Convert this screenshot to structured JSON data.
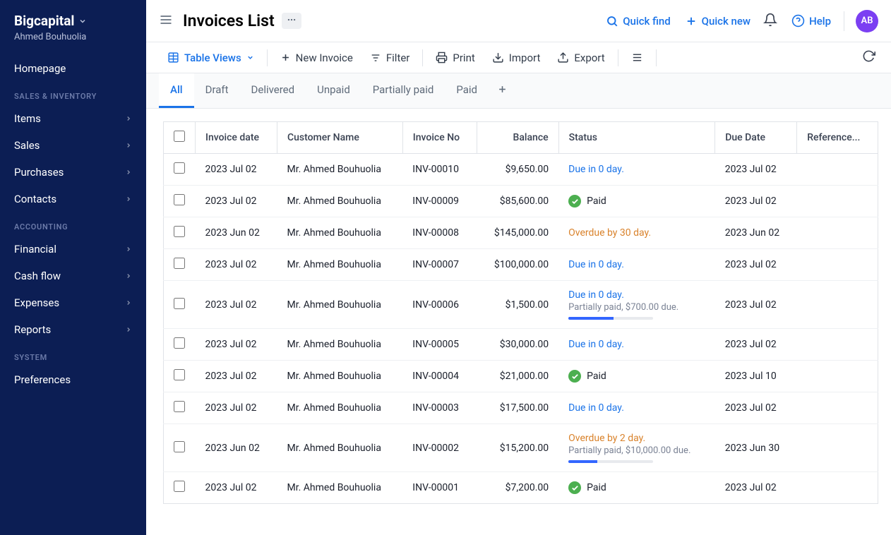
{
  "brand": "Bigcapital",
  "user": "Ahmed Bouhuolia",
  "sidebar": {
    "home": "Homepage",
    "sections": [
      {
        "title": "SALES & INVENTORY",
        "items": [
          "Items",
          "Sales",
          "Purchases",
          "Contacts"
        ]
      },
      {
        "title": "ACCOUNTING",
        "items": [
          "Financial",
          "Cash flow",
          "Expenses",
          "Reports"
        ]
      },
      {
        "title": "SYSTEM",
        "items": [
          "Preferences"
        ],
        "noChevron": true
      }
    ]
  },
  "page_title": "Invoices List",
  "top": {
    "quick_find": "Quick find",
    "quick_new": "Quick new",
    "help": "Help",
    "avatar": "AB"
  },
  "toolbar": {
    "table_views": "Table Views",
    "new_invoice": "New Invoice",
    "filter": "Filter",
    "print": "Print",
    "import": "Import",
    "export": "Export"
  },
  "tabs": [
    "All",
    "Draft",
    "Delivered",
    "Unpaid",
    "Partially paid",
    "Paid"
  ],
  "active_tab": 0,
  "columns": [
    "Invoice date",
    "Customer Name",
    "Invoice No",
    "Balance",
    "Status",
    "Due Date",
    "Reference..."
  ],
  "rows": [
    {
      "date": "2023 Jul 02",
      "customer": "Mr. Ahmed Bouhuolia",
      "no": "INV-00010",
      "balance": "$9,650.00",
      "status": {
        "type": "due",
        "text": "Due in 0 day."
      },
      "due": "2023 Jul 02"
    },
    {
      "date": "2023 Jul 02",
      "customer": "Mr. Ahmed Bouhuolia",
      "no": "INV-00009",
      "balance": "$85,600.00",
      "status": {
        "type": "paid",
        "text": "Paid"
      },
      "due": "2023 Jul 02"
    },
    {
      "date": "2023 Jun 02",
      "customer": "Mr. Ahmed Bouhuolia",
      "no": "INV-00008",
      "balance": "$145,000.00",
      "status": {
        "type": "overdue",
        "text": "Overdue by 30 day."
      },
      "due": "2023 Jun 02"
    },
    {
      "date": "2023 Jul 02",
      "customer": "Mr. Ahmed Bouhuolia",
      "no": "INV-00007",
      "balance": "$100,000.00",
      "status": {
        "type": "due",
        "text": "Due in 0 day."
      },
      "due": "2023 Jul 02"
    },
    {
      "date": "2023 Jul 02",
      "customer": "Mr. Ahmed Bouhuolia",
      "no": "INV-00006",
      "balance": "$1,500.00",
      "status": {
        "type": "due",
        "text": "Due in 0 day.",
        "sub": "Partially paid, $700.00 due.",
        "progress": 53
      },
      "due": "2023 Jul 02"
    },
    {
      "date": "2023 Jul 02",
      "customer": "Mr. Ahmed Bouhuolia",
      "no": "INV-00005",
      "balance": "$30,000.00",
      "status": {
        "type": "due",
        "text": "Due in 0 day."
      },
      "due": "2023 Jul 02"
    },
    {
      "date": "2023 Jul 02",
      "customer": "Mr. Ahmed Bouhuolia",
      "no": "INV-00004",
      "balance": "$21,000.00",
      "status": {
        "type": "paid",
        "text": "Paid"
      },
      "due": "2023 Jul 10"
    },
    {
      "date": "2023 Jul 02",
      "customer": "Mr. Ahmed Bouhuolia",
      "no": "INV-00003",
      "balance": "$17,500.00",
      "status": {
        "type": "due",
        "text": "Due in 0 day."
      },
      "due": "2023 Jul 02"
    },
    {
      "date": "2023 Jun 02",
      "customer": "Mr. Ahmed Bouhuolia",
      "no": "INV-00002",
      "balance": "$15,200.00",
      "status": {
        "type": "overdue",
        "text": "Overdue by 2 day.",
        "sub": "Partially paid, $10,000.00 due.",
        "progress": 34
      },
      "due": "2023 Jun 30"
    },
    {
      "date": "2023 Jul 02",
      "customer": "Mr. Ahmed Bouhuolia",
      "no": "INV-00001",
      "balance": "$7,200.00",
      "status": {
        "type": "paid",
        "text": "Paid"
      },
      "due": "2023 Jul 02"
    }
  ]
}
